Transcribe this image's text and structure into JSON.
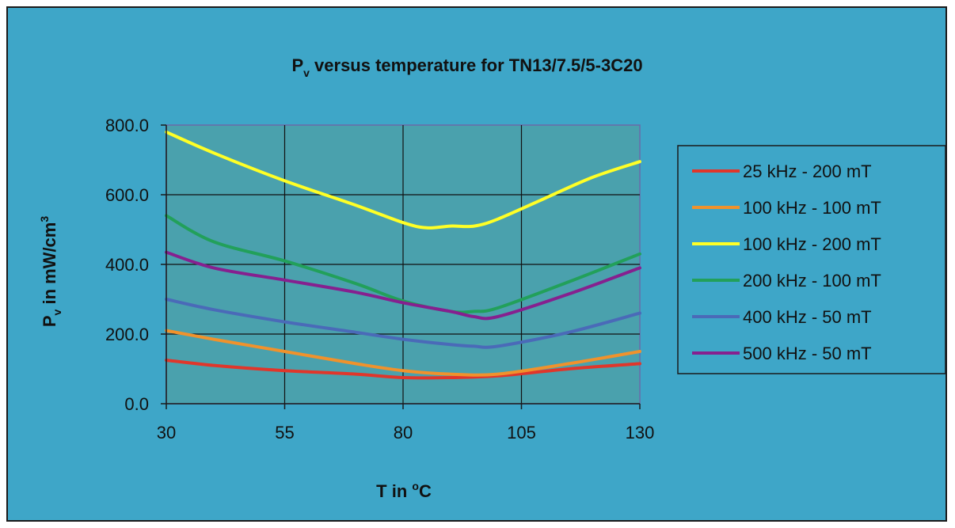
{
  "chart_data": {
    "type": "line",
    "title_main": "P",
    "title_sub": "v",
    "title_rest": " versus temperature for TN13/7.5/5-3C20",
    "ylabel_main": "P",
    "ylabel_sub": "v",
    "ylabel_rest": " in mW/cm",
    "ylabel_sup": "3",
    "xlabel_main": "T in ",
    "xlabel_sup": "o",
    "xlabel_rest": "C",
    "xlim": [
      30,
      130
    ],
    "ylim": [
      0,
      800
    ],
    "x_ticks": [
      30,
      55,
      80,
      105,
      130
    ],
    "x_tick_labels": [
      "30",
      "55",
      "80",
      "105",
      "130"
    ],
    "y_ticks": [
      0,
      200,
      400,
      600,
      800
    ],
    "y_tick_labels": [
      "0.0",
      "200.0",
      "400.0",
      "600.0",
      "800.0"
    ],
    "grid": true,
    "legend_position": "right",
    "colors": {
      "background": "#3ea6c8",
      "plot_area": "#4aa1ad",
      "frame": "#1a1a1a",
      "grid": "#111111",
      "plot_border": "#6a6aa8"
    },
    "series": [
      {
        "name": "25 kHz - 200 mT",
        "color": "#e0362b",
        "x": [
          30,
          40,
          55,
          70,
          80,
          90,
          100,
          115,
          130
        ],
        "y": [
          125,
          110,
          95,
          85,
          75,
          75,
          80,
          100,
          115
        ]
      },
      {
        "name": "100 kHz - 100 mT",
        "color": "#f0922c",
        "x": [
          30,
          40,
          55,
          70,
          80,
          90,
          100,
          115,
          130
        ],
        "y": [
          210,
          185,
          150,
          115,
          95,
          85,
          85,
          115,
          150
        ]
      },
      {
        "name": "100 kHz - 200 mT",
        "color": "#ffff26",
        "x": [
          30,
          40,
          55,
          70,
          80,
          85,
          90,
          95,
          100,
          110,
          120,
          130
        ],
        "y": [
          780,
          720,
          640,
          570,
          520,
          505,
          510,
          510,
          530,
          590,
          650,
          695
        ]
      },
      {
        "name": "200 kHz - 100 mT",
        "color": "#22a05a",
        "x": [
          30,
          40,
          55,
          70,
          80,
          90,
          95,
          100,
          115,
          130
        ],
        "y": [
          540,
          465,
          410,
          345,
          295,
          265,
          265,
          275,
          350,
          430
        ]
      },
      {
        "name": "400 kHz - 50 mT",
        "color": "#4a6ab8",
        "x": [
          30,
          40,
          55,
          70,
          80,
          90,
          95,
          100,
          115,
          130
        ],
        "y": [
          300,
          270,
          235,
          205,
          185,
          170,
          165,
          165,
          205,
          260
        ]
      },
      {
        "name": "500 kHz - 50 mT",
        "color": "#86208f",
        "x": [
          30,
          40,
          55,
          70,
          80,
          90,
          95,
          100,
          115,
          130
        ],
        "y": [
          435,
          390,
          355,
          320,
          290,
          265,
          250,
          250,
          315,
          390
        ]
      }
    ]
  }
}
